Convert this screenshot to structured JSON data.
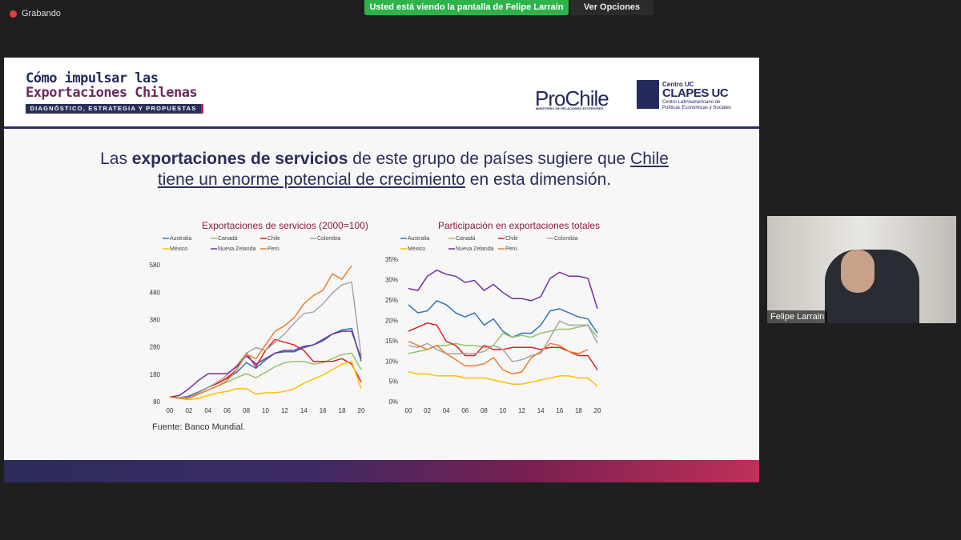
{
  "screen": {
    "recording": "Grabando",
    "banner": "Usted está viendo la pantalla de Felipe Larrain",
    "options": "Ver Opciones",
    "participant": "Felipe Larrain"
  },
  "slide": {
    "title_line1": "Cómo impulsar las",
    "title_line2": "Exportaciones Chilenas",
    "subtitle": "DIAGNÓSTICO, ESTRATEGIA Y PROPUESTAS",
    "logo1": "ProChile",
    "logo1_sub": "MINISTERIO DE RELACIONES EXTERIORES",
    "logo2_top": "Centro UC",
    "logo2": "CLAPES UC",
    "logo2_sub": "Centro Latinoamericano de Políticas Económicas y Sociales",
    "headline": [
      "Las ",
      "exportaciones de servicios",
      " de este grupo de países sugiere que ",
      "Chile tiene un enorme potencial de crecimiento",
      " en esta dimensión."
    ],
    "source": "Fuente: Banco Mundial."
  },
  "chart_data": [
    {
      "type": "line",
      "title": "Exportaciones de servicios (2000=100)",
      "categories": [
        "00",
        null,
        "02",
        null,
        "04",
        null,
        "06",
        null,
        "08",
        null,
        "10",
        null,
        "12",
        null,
        "14",
        null,
        "16",
        null,
        "18",
        null,
        "20"
      ],
      "ylim": [
        80,
        580
      ],
      "yticks": [
        80,
        180,
        280,
        380,
        480,
        580
      ],
      "series": [
        {
          "name": "Australia",
          "color": "#2e75b6",
          "values": [
            100,
            97,
            103,
            118,
            135,
            150,
            168,
            190,
            225,
            205,
            235,
            260,
            265,
            265,
            280,
            290,
            305,
            330,
            345,
            350,
            230
          ]
        },
        {
          "name": "Canadá",
          "color": "#92c46a",
          "values": [
            100,
            97,
            100,
            110,
            125,
            140,
            155,
            170,
            185,
            170,
            190,
            210,
            225,
            230,
            230,
            220,
            225,
            240,
            255,
            260,
            200
          ]
        },
        {
          "name": "Chile",
          "color": "#e02020",
          "values": [
            100,
            95,
            100,
            115,
            135,
            150,
            170,
            200,
            260,
            210,
            270,
            310,
            300,
            290,
            270,
            230,
            230,
            230,
            240,
            220,
            155
          ]
        },
        {
          "name": "Colombia",
          "color": "#a6a6a6",
          "values": [
            100,
            95,
            98,
            115,
            135,
            155,
            180,
            215,
            260,
            280,
            270,
            300,
            330,
            370,
            405,
            410,
            440,
            480,
            510,
            520,
            250
          ]
        },
        {
          "name": "México",
          "color": "#ffc000",
          "values": [
            100,
            95,
            90,
            95,
            105,
            115,
            120,
            130,
            130,
            110,
            115,
            115,
            120,
            130,
            150,
            165,
            180,
            200,
            220,
            230,
            130
          ]
        },
        {
          "name": "Nueva Zelanda",
          "color": "#7030a0",
          "values": [
            100,
            105,
            130,
            160,
            185,
            185,
            185,
            210,
            250,
            220,
            240,
            260,
            270,
            270,
            285,
            290,
            310,
            330,
            340,
            340,
            240
          ]
        },
        {
          "name": "Perú",
          "color": "#ed7d31",
          "values": [
            100,
            95,
            95,
            110,
            125,
            140,
            160,
            200,
            255,
            240,
            290,
            340,
            360,
            390,
            440,
            470,
            490,
            550,
            530,
            580,
            null
          ]
        }
      ]
    },
    {
      "type": "line",
      "title": "Participación en exportaciones totales",
      "categories": [
        "00",
        null,
        "02",
        null,
        "04",
        null,
        "06",
        null,
        "08",
        null,
        "10",
        null,
        "12",
        null,
        "14",
        null,
        "16",
        null,
        "18",
        null,
        "20"
      ],
      "ylim": [
        0,
        35
      ],
      "yticks": [
        {
          "value": 0,
          "label": "0%"
        },
        {
          "value": 5,
          "label": "5%"
        },
        {
          "value": 10,
          "label": "10%"
        },
        {
          "value": 15,
          "label": "15%"
        },
        {
          "value": 20,
          "label": "20%"
        },
        {
          "value": 25,
          "label": "25%"
        },
        {
          "value": 30,
          "label": "30%"
        },
        {
          "value": 35,
          "label": "35%"
        }
      ],
      "series": [
        {
          "name": "Australia",
          "color": "#2e75b6",
          "values": [
            24,
            22,
            22.5,
            25,
            24,
            22,
            21,
            22,
            19,
            20.5,
            17.5,
            16,
            17,
            17,
            19,
            22.5,
            23,
            22,
            21,
            20.5,
            17
          ]
        },
        {
          "name": "Canadá",
          "color": "#92c46a",
          "values": [
            12,
            12.5,
            13,
            14,
            14,
            14.5,
            14,
            14,
            13.5,
            14,
            17,
            16,
            16.5,
            16,
            17,
            17.5,
            18,
            18,
            18.5,
            19,
            16
          ]
        },
        {
          "name": "Chile",
          "color": "#e02020",
          "values": [
            17.5,
            18.5,
            19.5,
            19,
            15,
            14,
            11.5,
            11.5,
            14,
            13,
            13,
            13.5,
            13.5,
            13.5,
            13,
            13.5,
            13.5,
            12.5,
            11.5,
            11.5,
            8
          ]
        },
        {
          "name": "Colombia",
          "color": "#a6a6a6",
          "values": [
            14,
            13.5,
            14.5,
            13,
            12,
            12,
            12,
            12,
            12.5,
            14,
            13,
            10,
            10.5,
            11.5,
            12,
            16,
            20,
            19,
            19,
            19,
            14.5
          ]
        },
        {
          "name": "México",
          "color": "#ffc000",
          "values": [
            7.5,
            7,
            7,
            6.5,
            6.5,
            6.5,
            6,
            6,
            6,
            5.5,
            5,
            4.5,
            4.5,
            5,
            5.5,
            6,
            6.5,
            6.5,
            6,
            6,
            4
          ]
        },
        {
          "name": "Nueva Zelanda",
          "color": "#7030a0",
          "values": [
            28,
            27.5,
            31,
            32.5,
            31.5,
            31,
            29.5,
            30,
            27.5,
            29,
            27,
            25.5,
            25.5,
            25,
            26,
            30.5,
            32,
            31,
            31,
            30.5,
            23
          ]
        },
        {
          "name": "Perú",
          "color": "#ed7d31",
          "values": [
            15,
            14,
            13,
            14,
            12,
            10.5,
            9,
            9,
            9.5,
            11,
            8,
            7,
            7.5,
            11,
            12.5,
            14.5,
            14,
            12.5,
            12,
            13,
            null
          ]
        }
      ]
    }
  ]
}
